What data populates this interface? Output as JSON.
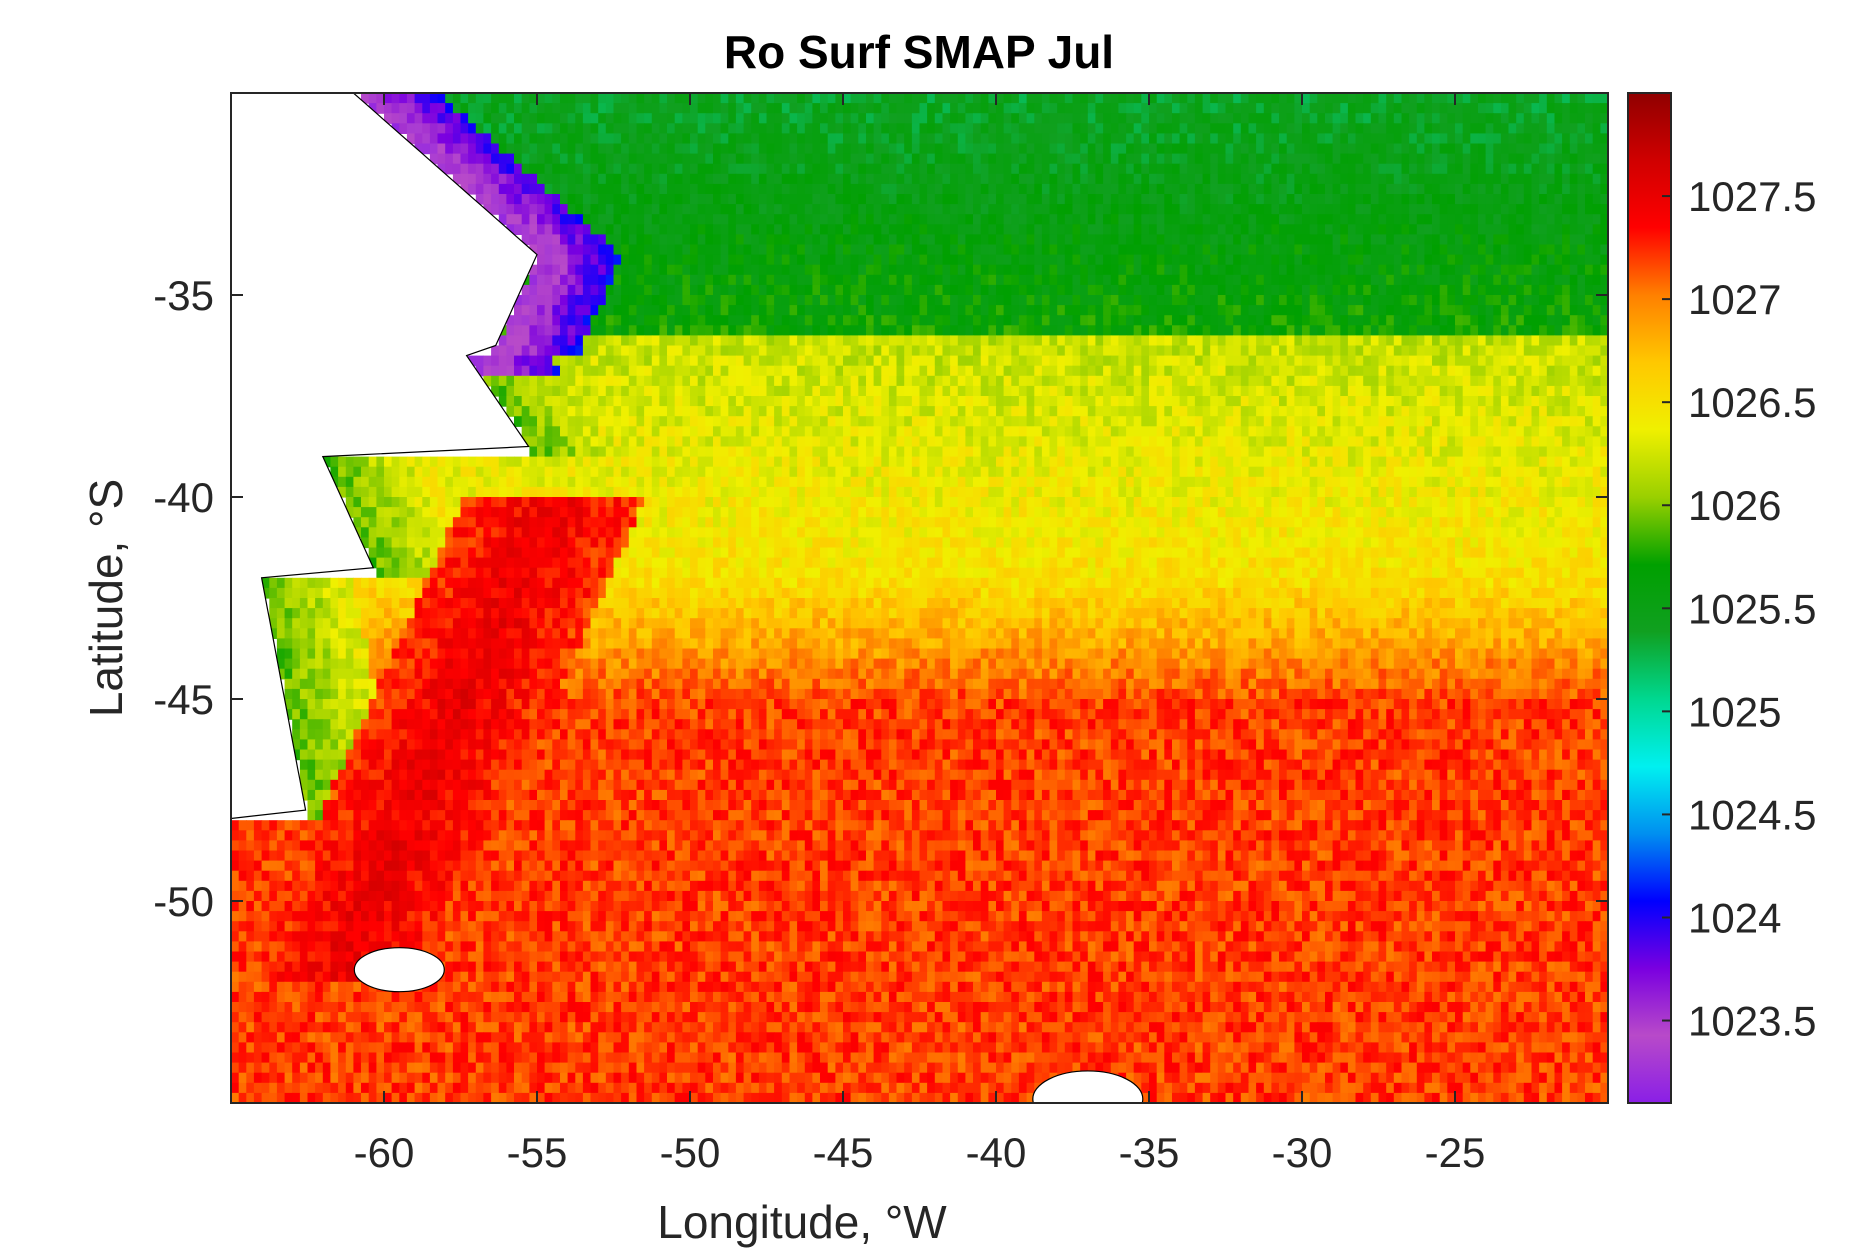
{
  "chart_data": {
    "type": "heatmap",
    "title": "Ro Surf SMAP Jul",
    "xlabel": "Longitude, °W",
    "ylabel": "Latitude, °S",
    "xlim": [
      -65,
      -20
    ],
    "ylim": [
      -55,
      -30
    ],
    "x_ticks": [
      -60,
      -55,
      -50,
      -45,
      -40,
      -35,
      -30,
      -25
    ],
    "x_tick_labels": [
      "-60",
      "-55",
      "-50",
      "-45",
      "-40",
      "-35",
      "-30",
      "-25"
    ],
    "y_ticks": [
      -35,
      -40,
      -45,
      -50
    ],
    "y_tick_labels": [
      "-35",
      "-40",
      "-45",
      "-50"
    ],
    "colorbar": {
      "range": [
        1023.1,
        1028.0
      ],
      "ticks": [
        1023.5,
        1024,
        1024.5,
        1025,
        1025.5,
        1026,
        1026.5,
        1027,
        1027.5
      ],
      "tick_labels": [
        "1023.5",
        "1024",
        "1024.5",
        "1025",
        "1025.5",
        "1026",
        "1026.5",
        "1027",
        "1027.5"
      ],
      "colormap": [
        "#8a1fe6",
        "#b84ac9",
        "#7a00e0",
        "#0000ff",
        "#0090f0",
        "#00f0f0",
        "#00d890",
        "#10a020",
        "#00a000",
        "#9ad000",
        "#f0f000",
        "#ffc800",
        "#ff8000",
        "#ff0000",
        "#d00000",
        "#900000"
      ]
    },
    "field_description_values": {
      "north_band_lat_gt_-36": 1025.7,
      "mid_band_lat_-38_to_-42": 1026.2,
      "brazil_malvinas_confluence_shelf_purple": 1023.3,
      "south_band_lat_lt_-44": 1027.2,
      "malvinas_current_core": 1027.5,
      "patagonian_shelf": 1025.9
    },
    "grid": false,
    "colorbar_position": "right"
  }
}
